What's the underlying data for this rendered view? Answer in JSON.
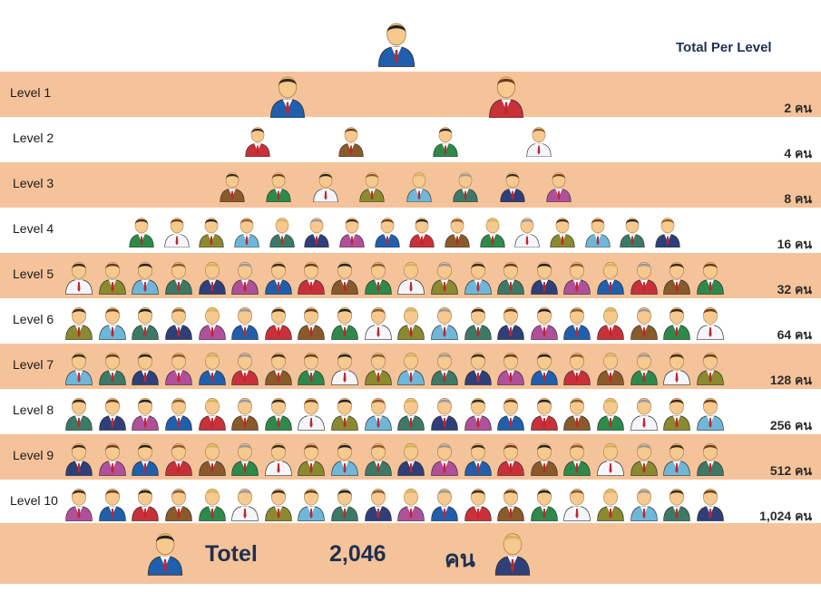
{
  "header": {
    "total_label": "Total  Per Level"
  },
  "root_icon": "person-icon",
  "palette": [
    "#1f5fae",
    "#c8313a",
    "#8a5a2b",
    "#2d8a4a",
    "#f4f6fb",
    "#8b8a2e",
    "#6fb7d8",
    "#3c7a66",
    "#2e3f7a",
    "#b0509a"
  ],
  "levels": [
    {
      "label": "Level 1",
      "total": "2 คน"
    },
    {
      "label": "Level 2",
      "total": "4 คน"
    },
    {
      "label": "Level 3",
      "total": "8 คน"
    },
    {
      "label": "Level 4",
      "total": "16 คน"
    },
    {
      "label": "Level 5",
      "total": "32 คน"
    },
    {
      "label": "Level 6",
      "total": "64 คน"
    },
    {
      "label": "Level 7",
      "total": "128 คน"
    },
    {
      "label": "Level 8",
      "total": "256 คน"
    },
    {
      "label": "Level 9",
      "total": "512 คน"
    },
    {
      "label": "Level 10",
      "total": "1,024  คน"
    }
  ],
  "footer": {
    "label": "Totel",
    "value": "2,046",
    "unit": "คน"
  }
}
